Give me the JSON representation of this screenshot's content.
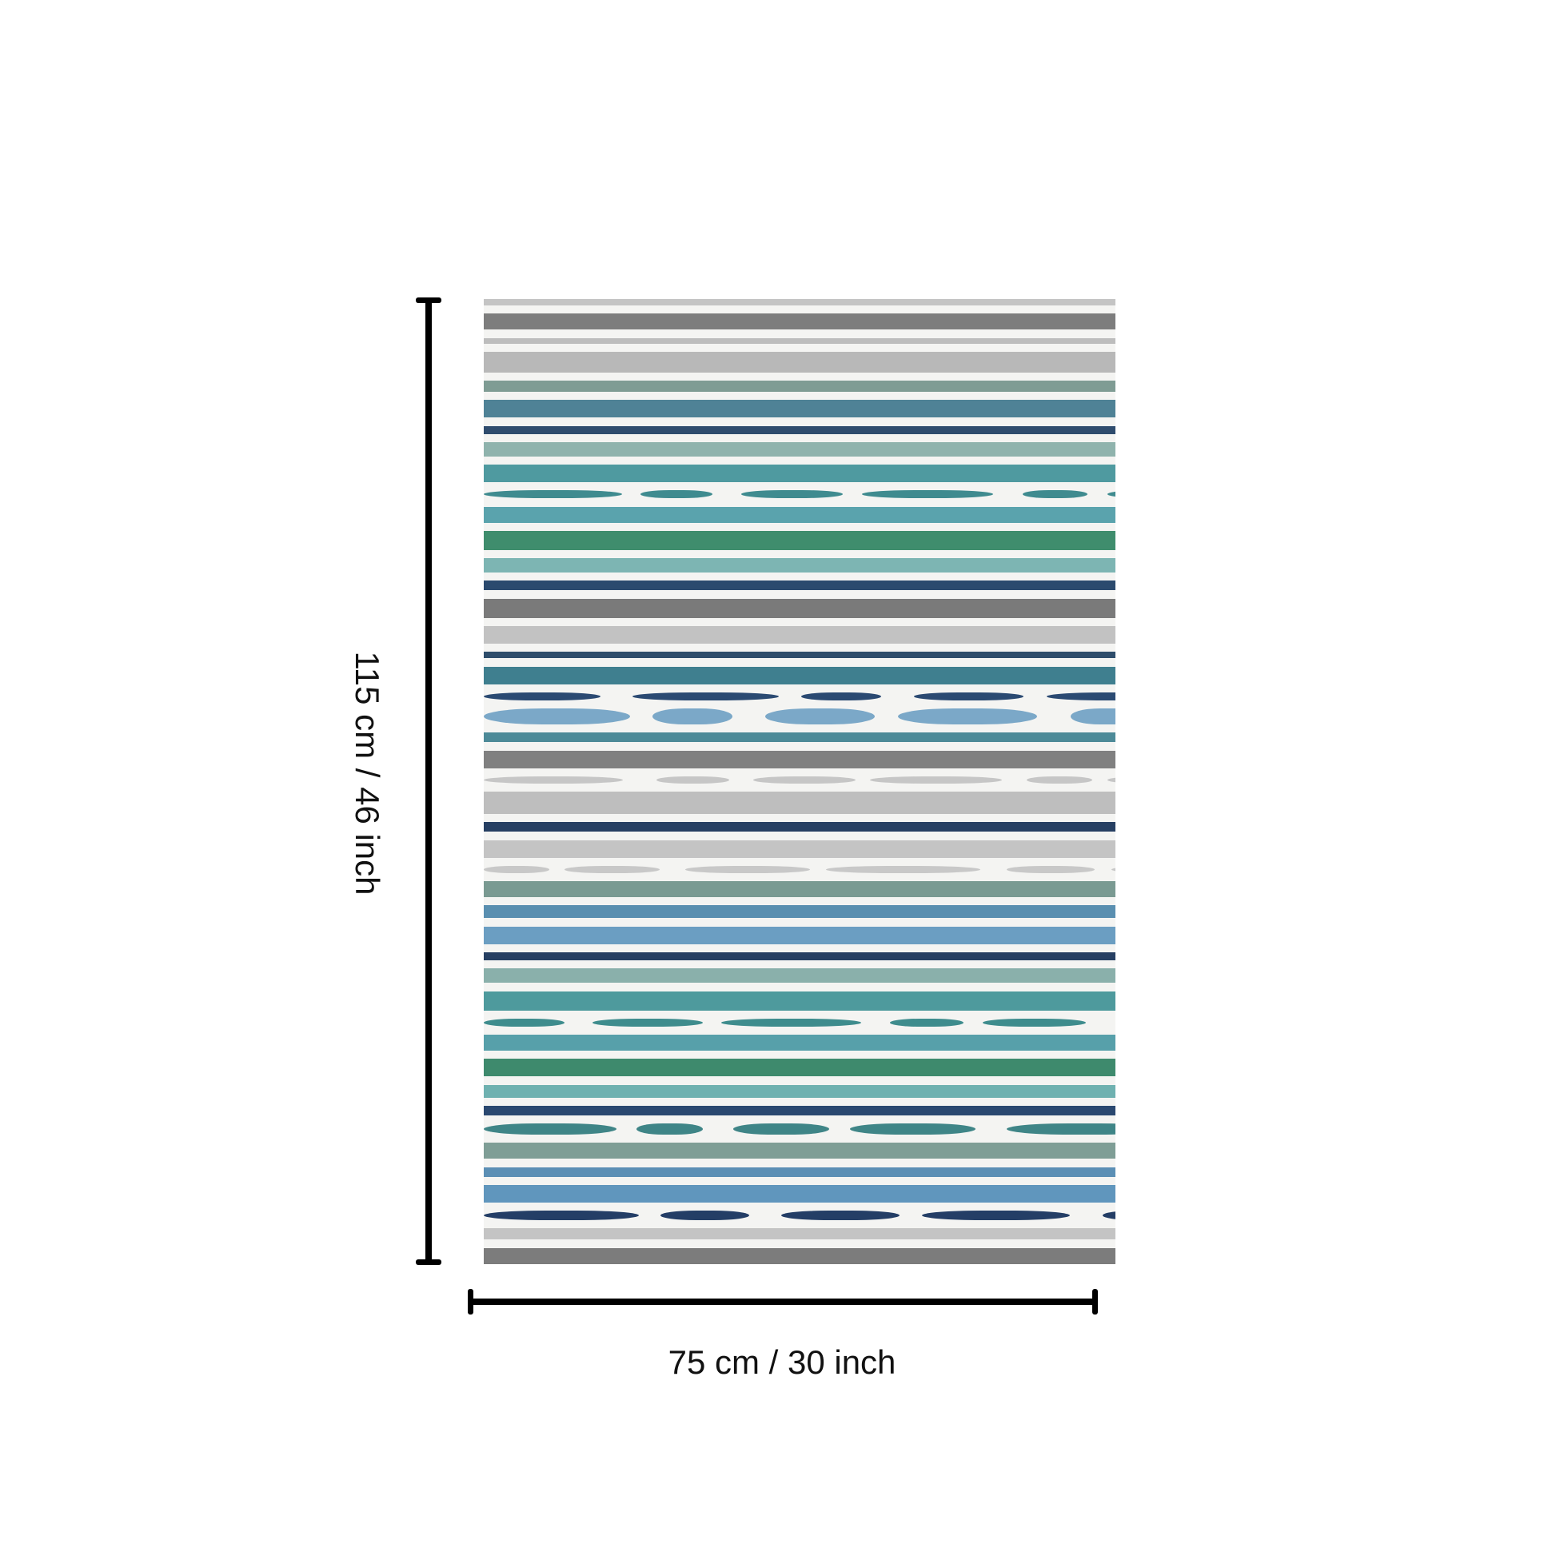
{
  "dimensions": {
    "height_label": "115 cm / 46 inch",
    "width_label": "75 cm / 30 inch"
  },
  "rug": {
    "background": "#f4f4f2",
    "stripe_colors": [
      "#c4c4c4",
      "#7d7d7d",
      "#bdbdbd",
      "#b8b8b8",
      "#7f9c94",
      "#4f8296",
      "#2f4c6e",
      "#8fb3ad",
      "#4f9aa0",
      "#3f8b8f",
      "#5aa3ad",
      "#3f8d6d",
      "#7db5b3",
      "#2b4a6e",
      "#7a7a7a",
      "#c2c2c2",
      "#2e4d6b",
      "#3f7f8f",
      "#2b4a72",
      "#7ba8c8",
      "#4d8a98",
      "#808080",
      "#c6c6c6",
      "#bebebe",
      "#263f62",
      "#c4c4c4",
      "#c8c8c8",
      "#7a9a92",
      "#5a8fb0",
      "#6b9ec2",
      "#263f62",
      "#8ab0ab",
      "#4e9a9d",
      "#3e8c8d",
      "#57a0aa",
      "#3e8a6d",
      "#6fb1b0",
      "#2a4870",
      "#3f8587",
      "#7f9e96",
      "#5b8fb5",
      "#6096bd",
      "#243e66",
      "#c4c4c4",
      "#7c7c7c"
    ]
  }
}
